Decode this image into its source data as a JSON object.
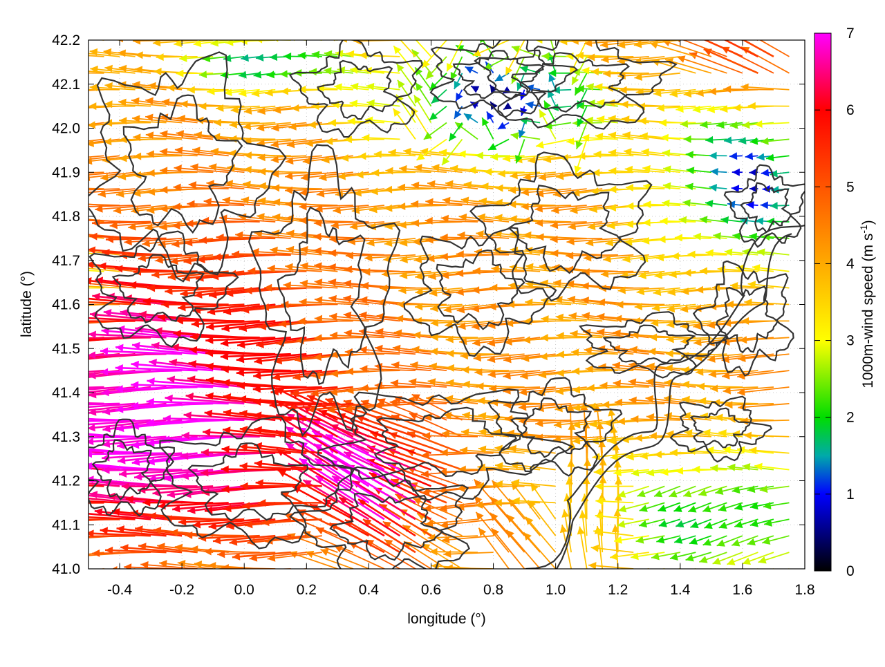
{
  "chart_data": {
    "type": "vector-field",
    "xlabel": "longitude (°)",
    "ylabel": "latitude (°)",
    "xlim": [
      -0.5,
      1.8
    ],
    "ylim": [
      41.0,
      42.2
    ],
    "x_ticks": [
      -0.4,
      -0.2,
      0.0,
      0.2,
      0.4,
      0.6,
      0.8,
      1.0,
      1.2,
      1.4,
      1.6,
      1.8
    ],
    "x_tick_labels": [
      "-0.4",
      "-0.2",
      "0.0",
      "0.2",
      "0.4",
      "0.6",
      "0.8",
      "1.0",
      "1.2",
      "1.4",
      "1.6",
      "1.8"
    ],
    "y_ticks": [
      41.0,
      41.1,
      41.2,
      41.3,
      41.4,
      41.5,
      41.6,
      41.7,
      41.8,
      41.9,
      42.0,
      42.1,
      42.2
    ],
    "y_tick_labels": [
      "41.0",
      "41.1",
      "41.2",
      "41.3",
      "41.4",
      "41.5",
      "41.6",
      "41.7",
      "41.8",
      "41.9",
      "42.0",
      "42.1",
      "42.2"
    ],
    "grid": true,
    "colorbar": {
      "label": "1000m-wind speed (m s",
      "label_superscript": "-1",
      "label_close": ")",
      "range": [
        0,
        7
      ],
      "ticks": [
        0,
        1,
        2,
        3,
        4,
        5,
        6,
        7
      ],
      "tick_labels": [
        "0",
        "1",
        "2",
        "3",
        "4",
        "5",
        "6",
        "7"
      ],
      "stops": [
        {
          "value": 0,
          "color": "#000000"
        },
        {
          "value": 1,
          "color": "#0000ff"
        },
        {
          "value": 1.5,
          "color": "#00aaaa"
        },
        {
          "value": 2,
          "color": "#00dd00"
        },
        {
          "value": 3,
          "color": "#ffff00"
        },
        {
          "value": 4,
          "color": "#ffaa00"
        },
        {
          "value": 5,
          "color": "#ff5500"
        },
        {
          "value": 6,
          "color": "#ff0000"
        },
        {
          "value": 7,
          "color": "#ff00ff"
        }
      ]
    },
    "contour_color": "#333333",
    "field_sample_points": [
      {
        "lon": -0.3,
        "lat": 41.45,
        "speed": 6.8
      },
      {
        "lon": 0.0,
        "lat": 41.7,
        "speed": 5.8
      },
      {
        "lon": 0.5,
        "lat": 41.15,
        "speed": 7.0
      },
      {
        "lon": 0.8,
        "lat": 42.05,
        "speed": 1.0
      },
      {
        "lon": 1.6,
        "lat": 41.85,
        "speed": 1.2
      },
      {
        "lon": 1.5,
        "lat": 41.1,
        "speed": 2.3
      },
      {
        "lon": 1.6,
        "lat": 42.15,
        "speed": 4.2
      }
    ]
  }
}
